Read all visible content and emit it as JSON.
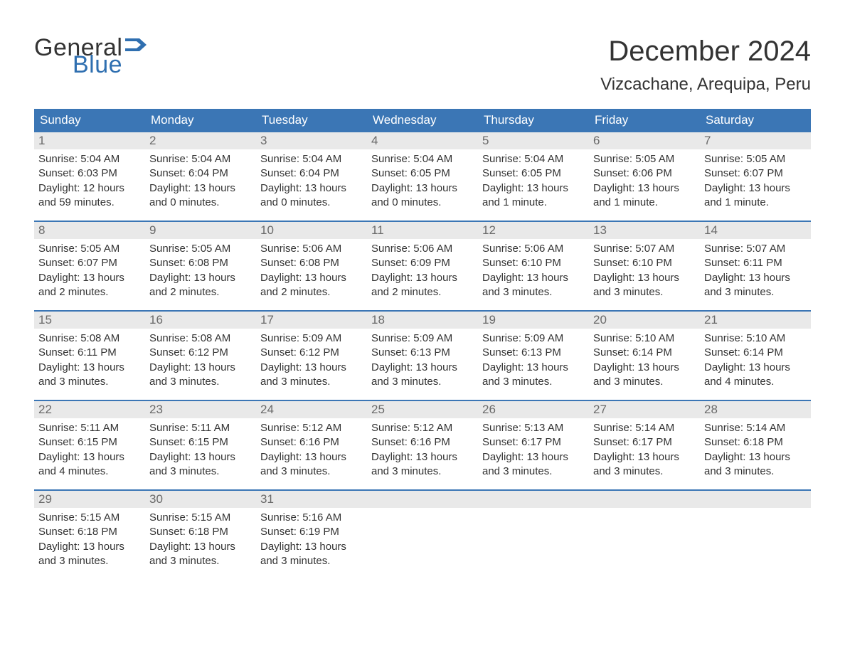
{
  "brand": {
    "word1": "General",
    "word2": "Blue",
    "flag_color": "#2f6fb0",
    "text_color": "#333333"
  },
  "title": "December 2024",
  "location": "Vizcachane, Arequipa, Peru",
  "colors": {
    "header_bg": "#3b76b5",
    "header_text": "#ffffff",
    "daynum_bg": "#e9e9e9",
    "daynum_text": "#6a6a6a",
    "body_text": "#333333",
    "week_border": "#3b76b5",
    "background": "#ffffff"
  },
  "fonts": {
    "title_size": 40,
    "location_size": 24,
    "header_size": 17,
    "daynum_size": 17,
    "body_size": 15
  },
  "weekdays": [
    "Sunday",
    "Monday",
    "Tuesday",
    "Wednesday",
    "Thursday",
    "Friday",
    "Saturday"
  ],
  "weeks": [
    [
      {
        "n": "1",
        "sunrise": "Sunrise: 5:04 AM",
        "sunset": "Sunset: 6:03 PM",
        "d1": "Daylight: 12 hours",
        "d2": "and 59 minutes."
      },
      {
        "n": "2",
        "sunrise": "Sunrise: 5:04 AM",
        "sunset": "Sunset: 6:04 PM",
        "d1": "Daylight: 13 hours",
        "d2": "and 0 minutes."
      },
      {
        "n": "3",
        "sunrise": "Sunrise: 5:04 AM",
        "sunset": "Sunset: 6:04 PM",
        "d1": "Daylight: 13 hours",
        "d2": "and 0 minutes."
      },
      {
        "n": "4",
        "sunrise": "Sunrise: 5:04 AM",
        "sunset": "Sunset: 6:05 PM",
        "d1": "Daylight: 13 hours",
        "d2": "and 0 minutes."
      },
      {
        "n": "5",
        "sunrise": "Sunrise: 5:04 AM",
        "sunset": "Sunset: 6:05 PM",
        "d1": "Daylight: 13 hours",
        "d2": "and 1 minute."
      },
      {
        "n": "6",
        "sunrise": "Sunrise: 5:05 AM",
        "sunset": "Sunset: 6:06 PM",
        "d1": "Daylight: 13 hours",
        "d2": "and 1 minute."
      },
      {
        "n": "7",
        "sunrise": "Sunrise: 5:05 AM",
        "sunset": "Sunset: 6:07 PM",
        "d1": "Daylight: 13 hours",
        "d2": "and 1 minute."
      }
    ],
    [
      {
        "n": "8",
        "sunrise": "Sunrise: 5:05 AM",
        "sunset": "Sunset: 6:07 PM",
        "d1": "Daylight: 13 hours",
        "d2": "and 2 minutes."
      },
      {
        "n": "9",
        "sunrise": "Sunrise: 5:05 AM",
        "sunset": "Sunset: 6:08 PM",
        "d1": "Daylight: 13 hours",
        "d2": "and 2 minutes."
      },
      {
        "n": "10",
        "sunrise": "Sunrise: 5:06 AM",
        "sunset": "Sunset: 6:08 PM",
        "d1": "Daylight: 13 hours",
        "d2": "and 2 minutes."
      },
      {
        "n": "11",
        "sunrise": "Sunrise: 5:06 AM",
        "sunset": "Sunset: 6:09 PM",
        "d1": "Daylight: 13 hours",
        "d2": "and 2 minutes."
      },
      {
        "n": "12",
        "sunrise": "Sunrise: 5:06 AM",
        "sunset": "Sunset: 6:10 PM",
        "d1": "Daylight: 13 hours",
        "d2": "and 3 minutes."
      },
      {
        "n": "13",
        "sunrise": "Sunrise: 5:07 AM",
        "sunset": "Sunset: 6:10 PM",
        "d1": "Daylight: 13 hours",
        "d2": "and 3 minutes."
      },
      {
        "n": "14",
        "sunrise": "Sunrise: 5:07 AM",
        "sunset": "Sunset: 6:11 PM",
        "d1": "Daylight: 13 hours",
        "d2": "and 3 minutes."
      }
    ],
    [
      {
        "n": "15",
        "sunrise": "Sunrise: 5:08 AM",
        "sunset": "Sunset: 6:11 PM",
        "d1": "Daylight: 13 hours",
        "d2": "and 3 minutes."
      },
      {
        "n": "16",
        "sunrise": "Sunrise: 5:08 AM",
        "sunset": "Sunset: 6:12 PM",
        "d1": "Daylight: 13 hours",
        "d2": "and 3 minutes."
      },
      {
        "n": "17",
        "sunrise": "Sunrise: 5:09 AM",
        "sunset": "Sunset: 6:12 PM",
        "d1": "Daylight: 13 hours",
        "d2": "and 3 minutes."
      },
      {
        "n": "18",
        "sunrise": "Sunrise: 5:09 AM",
        "sunset": "Sunset: 6:13 PM",
        "d1": "Daylight: 13 hours",
        "d2": "and 3 minutes."
      },
      {
        "n": "19",
        "sunrise": "Sunrise: 5:09 AM",
        "sunset": "Sunset: 6:13 PM",
        "d1": "Daylight: 13 hours",
        "d2": "and 3 minutes."
      },
      {
        "n": "20",
        "sunrise": "Sunrise: 5:10 AM",
        "sunset": "Sunset: 6:14 PM",
        "d1": "Daylight: 13 hours",
        "d2": "and 3 minutes."
      },
      {
        "n": "21",
        "sunrise": "Sunrise: 5:10 AM",
        "sunset": "Sunset: 6:14 PM",
        "d1": "Daylight: 13 hours",
        "d2": "and 4 minutes."
      }
    ],
    [
      {
        "n": "22",
        "sunrise": "Sunrise: 5:11 AM",
        "sunset": "Sunset: 6:15 PM",
        "d1": "Daylight: 13 hours",
        "d2": "and 4 minutes."
      },
      {
        "n": "23",
        "sunrise": "Sunrise: 5:11 AM",
        "sunset": "Sunset: 6:15 PM",
        "d1": "Daylight: 13 hours",
        "d2": "and 3 minutes."
      },
      {
        "n": "24",
        "sunrise": "Sunrise: 5:12 AM",
        "sunset": "Sunset: 6:16 PM",
        "d1": "Daylight: 13 hours",
        "d2": "and 3 minutes."
      },
      {
        "n": "25",
        "sunrise": "Sunrise: 5:12 AM",
        "sunset": "Sunset: 6:16 PM",
        "d1": "Daylight: 13 hours",
        "d2": "and 3 minutes."
      },
      {
        "n": "26",
        "sunrise": "Sunrise: 5:13 AM",
        "sunset": "Sunset: 6:17 PM",
        "d1": "Daylight: 13 hours",
        "d2": "and 3 minutes."
      },
      {
        "n": "27",
        "sunrise": "Sunrise: 5:14 AM",
        "sunset": "Sunset: 6:17 PM",
        "d1": "Daylight: 13 hours",
        "d2": "and 3 minutes."
      },
      {
        "n": "28",
        "sunrise": "Sunrise: 5:14 AM",
        "sunset": "Sunset: 6:18 PM",
        "d1": "Daylight: 13 hours",
        "d2": "and 3 minutes."
      }
    ],
    [
      {
        "n": "29",
        "sunrise": "Sunrise: 5:15 AM",
        "sunset": "Sunset: 6:18 PM",
        "d1": "Daylight: 13 hours",
        "d2": "and 3 minutes."
      },
      {
        "n": "30",
        "sunrise": "Sunrise: 5:15 AM",
        "sunset": "Sunset: 6:18 PM",
        "d1": "Daylight: 13 hours",
        "d2": "and 3 minutes."
      },
      {
        "n": "31",
        "sunrise": "Sunrise: 5:16 AM",
        "sunset": "Sunset: 6:19 PM",
        "d1": "Daylight: 13 hours",
        "d2": "and 3 minutes."
      },
      {
        "empty": true
      },
      {
        "empty": true
      },
      {
        "empty": true
      },
      {
        "empty": true
      }
    ]
  ]
}
